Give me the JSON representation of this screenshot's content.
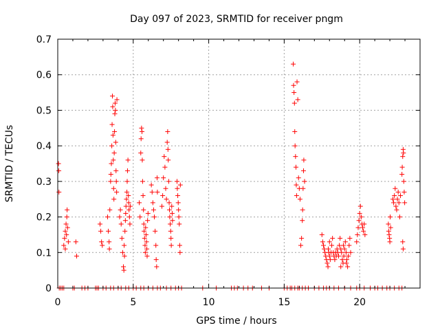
{
  "chart_data": {
    "type": "scatter",
    "title": "Day 097 of 2023, SRMTID for receiver pngm",
    "xlabel": "GPS time / hours",
    "ylabel": "SRMTID / TECUs",
    "xlim": [
      0,
      24
    ],
    "ylim": [
      0,
      0.7
    ],
    "xticks": [
      0,
      5,
      10,
      15,
      20
    ],
    "yticks": [
      0,
      0.1,
      0.2,
      0.3,
      0.4,
      0.5,
      0.6,
      0.7
    ],
    "xtick_labels": [
      "0",
      "5",
      "10",
      "15",
      "20"
    ],
    "ytick_labels": [
      "0",
      "0.1",
      "0.2",
      "0.3",
      "0.4",
      "0.5",
      "0.6",
      "0.7"
    ],
    "grid": true,
    "marker": "+",
    "series": [
      {
        "name": "SRMTID",
        "color": "#ff0000",
        "points": [
          [
            0.05,
            0.35
          ],
          [
            0.07,
            0.33
          ],
          [
            0.08,
            0.27
          ],
          [
            0.4,
            0.12
          ],
          [
            0.45,
            0.14
          ],
          [
            0.5,
            0.16
          ],
          [
            0.55,
            0.18
          ],
          [
            0.6,
            0.2
          ],
          [
            0.62,
            0.22
          ],
          [
            0.65,
            0.17
          ],
          [
            0.7,
            0.13
          ],
          [
            0.5,
            0.11
          ],
          [
            0.58,
            0.15
          ],
          [
            1.2,
            0.13
          ],
          [
            1.25,
            0.09
          ],
          [
            2.8,
            0.18
          ],
          [
            2.85,
            0.16
          ],
          [
            2.9,
            0.13
          ],
          [
            2.95,
            0.12
          ],
          [
            3.3,
            0.2
          ],
          [
            3.35,
            0.16
          ],
          [
            3.4,
            0.13
          ],
          [
            3.42,
            0.11
          ],
          [
            3.45,
            0.22
          ],
          [
            3.5,
            0.3
          ],
          [
            3.52,
            0.32
          ],
          [
            3.55,
            0.35
          ],
          [
            3.58,
            0.4
          ],
          [
            3.6,
            0.46
          ],
          [
            3.62,
            0.54
          ],
          [
            3.64,
            0.51
          ],
          [
            3.66,
            0.43
          ],
          [
            3.68,
            0.36
          ],
          [
            3.7,
            0.28
          ],
          [
            3.72,
            0.25
          ],
          [
            3.74,
            0.38
          ],
          [
            3.76,
            0.44
          ],
          [
            3.78,
            0.49
          ],
          [
            3.8,
            0.52
          ],
          [
            3.82,
            0.5
          ],
          [
            3.84,
            0.41
          ],
          [
            3.86,
            0.33
          ],
          [
            3.88,
            0.3
          ],
          [
            3.9,
            0.27
          ],
          [
            3.92,
            0.53
          ],
          [
            4.1,
            0.2
          ],
          [
            4.15,
            0.22
          ],
          [
            4.2,
            0.18
          ],
          [
            4.25,
            0.14
          ],
          [
            4.3,
            0.1
          ],
          [
            4.35,
            0.06
          ],
          [
            4.38,
            0.05
          ],
          [
            4.4,
            0.12
          ],
          [
            4.42,
            0.09
          ],
          [
            4.45,
            0.16
          ],
          [
            4.48,
            0.19
          ],
          [
            4.5,
            0.21
          ],
          [
            4.52,
            0.23
          ],
          [
            4.55,
            0.25
          ],
          [
            4.58,
            0.27
          ],
          [
            4.6,
            0.3
          ],
          [
            4.62,
            0.33
          ],
          [
            4.65,
            0.36
          ],
          [
            4.68,
            0.26
          ],
          [
            4.7,
            0.24
          ],
          [
            4.72,
            0.22
          ],
          [
            4.75,
            0.2
          ],
          [
            4.78,
            0.18
          ],
          [
            4.8,
            0.23
          ],
          [
            5.4,
            0.24
          ],
          [
            5.45,
            0.2
          ],
          [
            5.5,
            0.38
          ],
          [
            5.52,
            0.42
          ],
          [
            5.55,
            0.45
          ],
          [
            5.58,
            0.44
          ],
          [
            5.6,
            0.36
          ],
          [
            5.62,
            0.3
          ],
          [
            5.65,
            0.26
          ],
          [
            5.68,
            0.22
          ],
          [
            5.7,
            0.18
          ],
          [
            5.72,
            0.16
          ],
          [
            5.75,
            0.14
          ],
          [
            5.78,
            0.12
          ],
          [
            5.8,
            0.1
          ],
          [
            5.82,
            0.17
          ],
          [
            5.85,
            0.15
          ],
          [
            5.88,
            0.13
          ],
          [
            5.9,
            0.11
          ],
          [
            5.92,
            0.09
          ],
          [
            5.95,
            0.19
          ],
          [
            5.98,
            0.21
          ],
          [
            6.2,
            0.29
          ],
          [
            6.25,
            0.27
          ],
          [
            6.3,
            0.24
          ],
          [
            6.35,
            0.22
          ],
          [
            6.4,
            0.2
          ],
          [
            6.45,
            0.16
          ],
          [
            6.5,
            0.12
          ],
          [
            6.52,
            0.08
          ],
          [
            6.55,
            0.06
          ],
          [
            6.58,
            0.31
          ],
          [
            6.6,
            0.27
          ],
          [
            6.9,
            0.23
          ],
          [
            6.95,
            0.26
          ],
          [
            7.0,
            0.31
          ],
          [
            7.05,
            0.37
          ],
          [
            7.1,
            0.34
          ],
          [
            7.15,
            0.28
          ],
          [
            7.2,
            0.25
          ],
          [
            7.25,
            0.41
          ],
          [
            7.28,
            0.44
          ],
          [
            7.3,
            0.39
          ],
          [
            7.32,
            0.36
          ],
          [
            7.35,
            0.3
          ],
          [
            7.38,
            0.24
          ],
          [
            7.4,
            0.22
          ],
          [
            7.42,
            0.2
          ],
          [
            7.45,
            0.18
          ],
          [
            7.48,
            0.16
          ],
          [
            7.5,
            0.14
          ],
          [
            7.52,
            0.12
          ],
          [
            7.55,
            0.23
          ],
          [
            7.58,
            0.21
          ],
          [
            7.6,
            0.19
          ],
          [
            7.9,
            0.3
          ],
          [
            7.92,
            0.28
          ],
          [
            7.95,
            0.26
          ],
          [
            7.98,
            0.24
          ],
          [
            8.0,
            0.22
          ],
          [
            8.02,
            0.2
          ],
          [
            8.05,
            0.18
          ],
          [
            8.08,
            0.12
          ],
          [
            8.1,
            0.1
          ],
          [
            8.12,
            0.29
          ],
          [
            15.6,
            0.63
          ],
          [
            15.62,
            0.57
          ],
          [
            15.65,
            0.55
          ],
          [
            15.68,
            0.52
          ],
          [
            15.7,
            0.44
          ],
          [
            15.72,
            0.4
          ],
          [
            15.75,
            0.37
          ],
          [
            15.78,
            0.34
          ],
          [
            15.8,
            0.29
          ],
          [
            15.82,
            0.26
          ],
          [
            15.85,
            0.58
          ],
          [
            15.9,
            0.53
          ],
          [
            15.95,
            0.31
          ],
          [
            16.0,
            0.28
          ],
          [
            16.05,
            0.25
          ],
          [
            16.1,
            0.12
          ],
          [
            16.15,
            0.14
          ],
          [
            16.2,
            0.19
          ],
          [
            16.22,
            0.22
          ],
          [
            16.25,
            0.28
          ],
          [
            16.28,
            0.33
          ],
          [
            16.3,
            0.36
          ],
          [
            16.35,
            0.3
          ],
          [
            17.5,
            0.15
          ],
          [
            17.55,
            0.13
          ],
          [
            17.6,
            0.12
          ],
          [
            17.65,
            0.11
          ],
          [
            17.7,
            0.1
          ],
          [
            17.75,
            0.09
          ],
          [
            17.8,
            0.08
          ],
          [
            17.85,
            0.07
          ],
          [
            17.9,
            0.06
          ],
          [
            17.92,
            0.11
          ],
          [
            17.95,
            0.1
          ],
          [
            18.0,
            0.09
          ],
          [
            18.05,
            0.08
          ],
          [
            18.1,
            0.1
          ],
          [
            18.15,
            0.12
          ],
          [
            18.2,
            0.14
          ],
          [
            18.25,
            0.1
          ],
          [
            18.3,
            0.09
          ],
          [
            18.35,
            0.08
          ],
          [
            18.4,
            0.1
          ],
          [
            18.45,
            0.09
          ],
          [
            18.5,
            0.11
          ],
          [
            18.55,
            0.1
          ],
          [
            18.6,
            0.09
          ],
          [
            18.65,
            0.12
          ],
          [
            18.7,
            0.14
          ],
          [
            18.75,
            0.11
          ],
          [
            18.8,
            0.1
          ],
          [
            18.85,
            0.08
          ],
          [
            18.9,
            0.07
          ],
          [
            18.95,
            0.09
          ],
          [
            19.0,
            0.11
          ],
          [
            19.05,
            0.13
          ],
          [
            19.1,
            0.1
          ],
          [
            19.15,
            0.08
          ],
          [
            19.2,
            0.06
          ],
          [
            19.25,
            0.09
          ],
          [
            19.3,
            0.12
          ],
          [
            19.35,
            0.14
          ],
          [
            19.4,
            0.1
          ],
          [
            18.75,
            0.06
          ],
          [
            18.92,
            0.12
          ],
          [
            19.12,
            0.07
          ],
          [
            18.0,
            0.13
          ],
          [
            19.8,
            0.13
          ],
          [
            19.85,
            0.15
          ],
          [
            19.9,
            0.17
          ],
          [
            19.95,
            0.19
          ],
          [
            20.0,
            0.21
          ],
          [
            20.05,
            0.23
          ],
          [
            20.1,
            0.2
          ],
          [
            20.15,
            0.18
          ],
          [
            20.2,
            0.17
          ],
          [
            20.25,
            0.16
          ],
          [
            20.3,
            0.18
          ],
          [
            20.35,
            0.15
          ],
          [
            21.9,
            0.18
          ],
          [
            21.92,
            0.16
          ],
          [
            21.95,
            0.15
          ],
          [
            21.98,
            0.14
          ],
          [
            22.0,
            0.13
          ],
          [
            22.02,
            0.2
          ],
          [
            22.05,
            0.17
          ],
          [
            22.2,
            0.25
          ],
          [
            22.25,
            0.24
          ],
          [
            22.3,
            0.26
          ],
          [
            22.35,
            0.28
          ],
          [
            22.4,
            0.23
          ],
          [
            22.45,
            0.22
          ],
          [
            22.5,
            0.25
          ],
          [
            22.55,
            0.27
          ],
          [
            22.6,
            0.24
          ],
          [
            22.65,
            0.2
          ],
          [
            22.7,
            0.26
          ],
          [
            22.8,
            0.32
          ],
          [
            22.82,
            0.34
          ],
          [
            22.85,
            0.37
          ],
          [
            22.88,
            0.39
          ],
          [
            22.9,
            0.38
          ],
          [
            22.92,
            0.3
          ],
          [
            22.95,
            0.27
          ],
          [
            22.98,
            0.24
          ],
          [
            22.85,
            0.13
          ],
          [
            22.88,
            0.11
          ]
        ],
        "zero_x": [
          0.1,
          0.2,
          0.3,
          0.4,
          1.0,
          1.1,
          1.6,
          1.8,
          2.0,
          2.5,
          2.6,
          2.7,
          3.0,
          3.2,
          3.5,
          3.7,
          4.0,
          4.2,
          4.5,
          4.7,
          5.0,
          5.2,
          5.5,
          5.7,
          6.0,
          6.3,
          6.6,
          6.8,
          7.2,
          7.5,
          7.8,
          8.0,
          8.2,
          9.6,
          10.5,
          11.5,
          11.7,
          11.9,
          12.3,
          12.6,
          12.9,
          13.5,
          14.0,
          15.0,
          15.2,
          15.4,
          15.5,
          15.7,
          15.9,
          16.0,
          16.2,
          16.4,
          16.6,
          17.0,
          17.3,
          17.6,
          17.8,
          18.0,
          18.3,
          18.6,
          19.0,
          19.4,
          19.8,
          20.0,
          20.3,
          20.7,
          21.0,
          21.2,
          21.5,
          21.8,
          22.0,
          22.3,
          22.6,
          22.8
        ]
      }
    ]
  }
}
